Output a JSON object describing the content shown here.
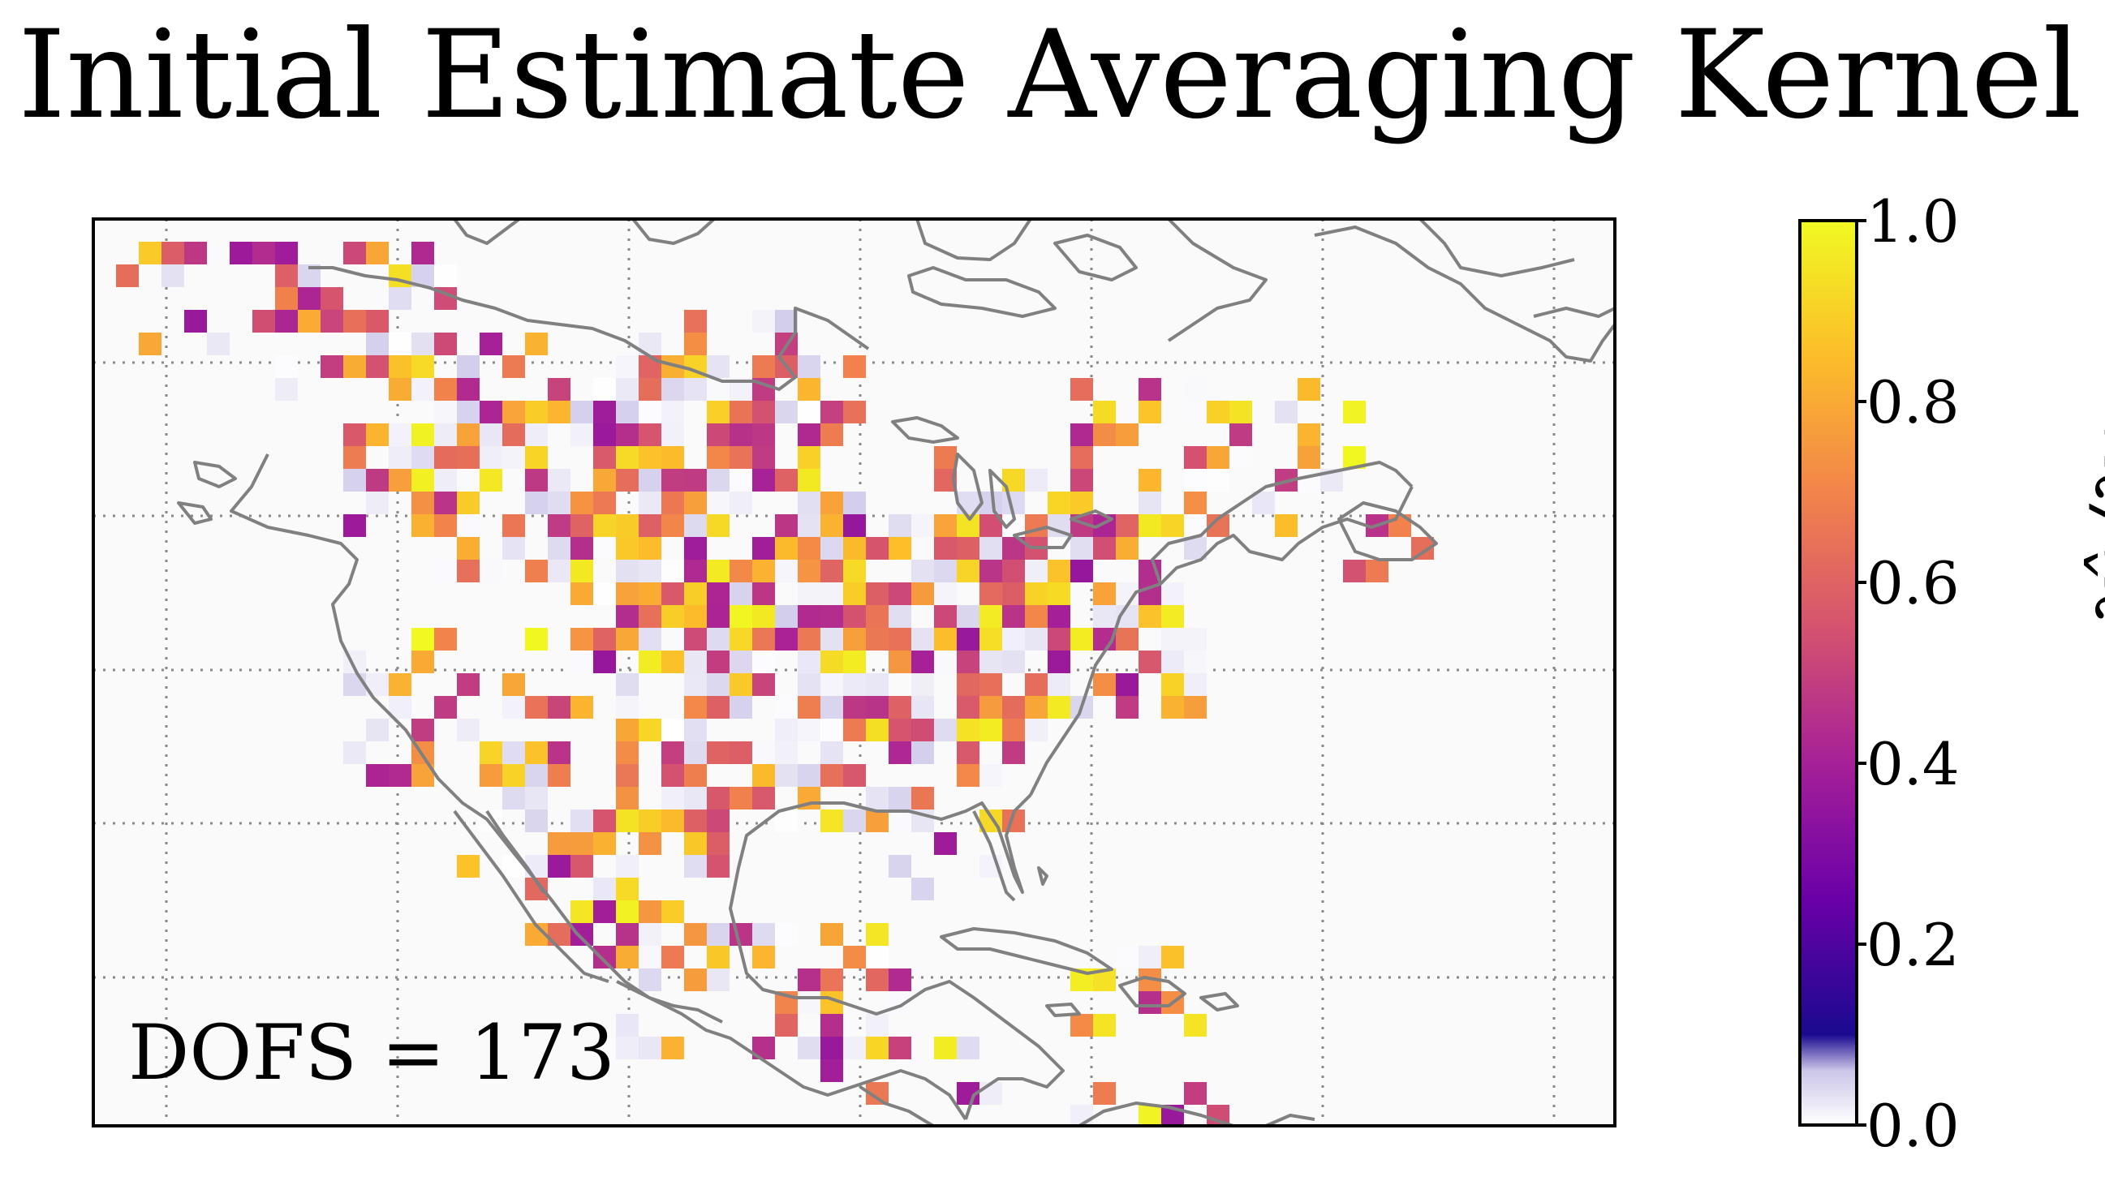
{
  "title": "Initial Estimate Averaging Kernel",
  "annotation": "DOFS = 173",
  "colorbar": {
    "label": "∂x̂ᵢ/∂xᵢ",
    "ticks": [
      "0.0",
      "0.2",
      "0.4",
      "0.6",
      "0.8",
      "1.0"
    ],
    "range": [
      0.0,
      1.0
    ],
    "colormap": "plasma"
  },
  "map": {
    "background": "#fafafa",
    "coastline_color": "#808080",
    "grid": true,
    "grid_style": "dotted",
    "region": "North America"
  },
  "colors": {
    "low": "#0d0887",
    "mid": "#b63679",
    "high": "#f0f921"
  }
}
